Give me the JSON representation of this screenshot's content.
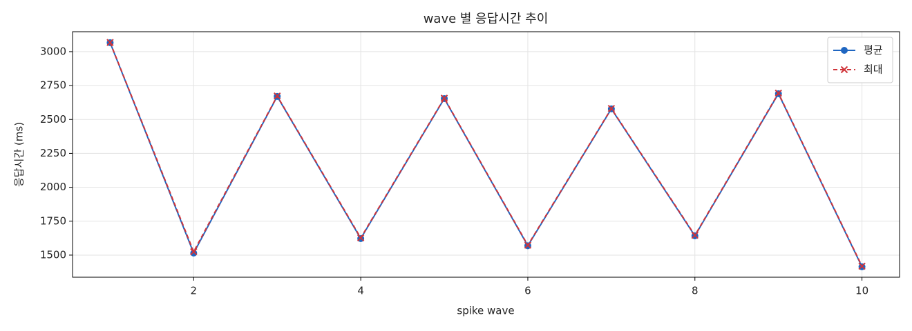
{
  "chart_data": {
    "type": "line",
    "title": "wave 별 응답시간 추이",
    "xlabel": "spike wave",
    "ylabel": "응답시간 (ms)",
    "x": [
      1,
      2,
      3,
      4,
      5,
      6,
      7,
      8,
      9,
      10
    ],
    "series": [
      {
        "name": "평균",
        "color": "#1f66c1",
        "marker": "o",
        "linestyle": "solid",
        "values": [
          3066,
          1515,
          2670,
          1622,
          2654,
          1569,
          2578,
          1642,
          2690,
          1414
        ]
      },
      {
        "name": "최대",
        "color": "#d0343a",
        "marker": "x",
        "linestyle": "dashed",
        "values": [
          3068,
          1525,
          2673,
          1627,
          2657,
          1573,
          2581,
          1646,
          2694,
          1418
        ]
      }
    ],
    "xlim": [
      0.55,
      10.45
    ],
    "xticks": [
      2,
      4,
      6,
      8,
      10
    ],
    "ylim": [
      1337,
      3147
    ],
    "yticks": [
      1500,
      1750,
      2000,
      2250,
      2500,
      2750,
      3000
    ],
    "grid": true,
    "legend": "upper right"
  }
}
